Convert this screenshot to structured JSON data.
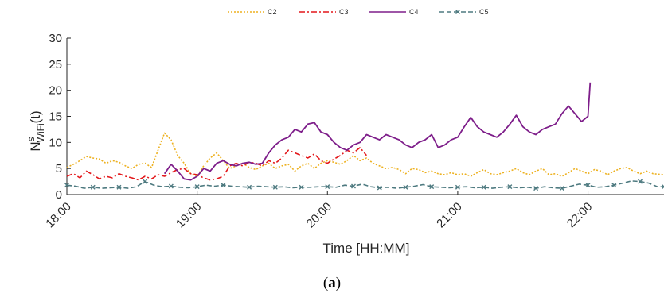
{
  "chart_data": {
    "type": "line",
    "xlabel": "Time [HH:MM]",
    "ylabel_base": "N",
    "ylabel_sup": "s",
    "ylabel_sub": "WiFi",
    "ylabel_arg": "(t)",
    "caption_open": "(",
    "caption_letter": "a",
    "caption_close": ")",
    "xlim": [
      1080,
      1355
    ],
    "ylim": [
      0,
      30
    ],
    "x_ticks": [
      {
        "value": 1080,
        "label": "18:00"
      },
      {
        "value": 1140,
        "label": "19:00"
      },
      {
        "value": 1200,
        "label": "20:00"
      },
      {
        "value": 1260,
        "label": "21:00"
      },
      {
        "value": 1320,
        "label": "22:00"
      }
    ],
    "y_ticks": [
      0,
      5,
      10,
      15,
      20,
      25,
      30
    ],
    "legend_position": "top-center",
    "series": [
      {
        "name": "C2",
        "color": "#EDB120",
        "dash": "2,2",
        "marker": "none",
        "x": [
          1080,
          1083,
          1086,
          1089,
          1092,
          1095,
          1098,
          1101,
          1104,
          1107,
          1110,
          1113,
          1116,
          1119,
          1122,
          1125,
          1128,
          1131,
          1134,
          1137,
          1140,
          1143,
          1146,
          1149,
          1152,
          1155,
          1158,
          1161,
          1164,
          1167,
          1170,
          1173,
          1176,
          1179,
          1182,
          1185,
          1188,
          1191,
          1194,
          1197,
          1200,
          1203,
          1206,
          1209,
          1212,
          1215,
          1218,
          1221,
          1224,
          1227,
          1230,
          1233,
          1236,
          1239,
          1242,
          1245,
          1248,
          1251,
          1254,
          1257,
          1260,
          1263,
          1266,
          1269,
          1272,
          1275,
          1278,
          1281,
          1284,
          1287,
          1290,
          1293,
          1296,
          1299,
          1302,
          1305,
          1308,
          1311,
          1314,
          1317,
          1320,
          1323,
          1326,
          1329,
          1332,
          1335,
          1338,
          1341,
          1344,
          1347,
          1350,
          1355
        ],
        "values": [
          5.2,
          5.8,
          6.5,
          7.3,
          7.0,
          6.8,
          6.0,
          6.5,
          6.2,
          5.5,
          5.0,
          5.8,
          6.0,
          5.2,
          8.5,
          11.8,
          10.5,
          7.5,
          6.0,
          4.0,
          3.5,
          5.5,
          7.0,
          8.0,
          6.5,
          5.0,
          5.5,
          6.0,
          5.2,
          4.8,
          5.5,
          6.0,
          5.0,
          5.5,
          5.8,
          4.5,
          5.5,
          6.0,
          5.0,
          6.0,
          6.5,
          6.2,
          5.8,
          6.5,
          7.5,
          6.5,
          7.0,
          6.0,
          5.5,
          5.0,
          5.2,
          4.8,
          4.0,
          5.0,
          4.8,
          4.2,
          4.5,
          4.0,
          3.8,
          4.2,
          3.8,
          4.0,
          3.5,
          4.2,
          4.8,
          4.0,
          3.8,
          4.2,
          4.5,
          5.0,
          4.2,
          3.8,
          4.5,
          5.0,
          3.8,
          4.0,
          3.5,
          4.2,
          5.0,
          4.5,
          4.0,
          4.8,
          4.5,
          3.8,
          4.5,
          5.0,
          5.2,
          4.5,
          4.0,
          4.5,
          4.0,
          3.8
        ]
      },
      {
        "name": "C3",
        "color": "#E3171A",
        "dash": "7,3,2,3",
        "marker": "none",
        "x": [
          1080,
          1083,
          1086,
          1089,
          1092,
          1095,
          1098,
          1101,
          1104,
          1107,
          1110,
          1113,
          1116,
          1119,
          1122,
          1125,
          1128,
          1131,
          1134,
          1137,
          1140,
          1143,
          1146,
          1149,
          1152,
          1155,
          1158,
          1161,
          1164,
          1167,
          1170,
          1173,
          1176,
          1179,
          1182,
          1185,
          1188,
          1191,
          1194,
          1197,
          1200,
          1203,
          1206,
          1209,
          1212,
          1215,
          1218
        ],
        "values": [
          3.5,
          4.0,
          3.2,
          4.5,
          3.8,
          3.0,
          3.5,
          3.2,
          4.0,
          3.5,
          3.2,
          2.8,
          3.5,
          3.0,
          3.8,
          3.5,
          4.2,
          4.8,
          5.0,
          4.0,
          3.8,
          3.2,
          2.8,
          3.0,
          3.5,
          5.5,
          6.0,
          5.5,
          6.2,
          6.0,
          5.5,
          6.5,
          6.0,
          7.0,
          8.5,
          8.0,
          7.5,
          7.0,
          7.8,
          6.5,
          6.0,
          6.8,
          7.5,
          8.5,
          8.0,
          9.0,
          7.5
        ]
      },
      {
        "name": "C4",
        "color": "#7E1E8A",
        "dash": "",
        "marker": "none",
        "x": [
          1125,
          1128,
          1131,
          1134,
          1137,
          1140,
          1143,
          1146,
          1149,
          1152,
          1155,
          1158,
          1161,
          1164,
          1167,
          1170,
          1173,
          1176,
          1179,
          1182,
          1185,
          1188,
          1191,
          1194,
          1197,
          1200,
          1203,
          1206,
          1209,
          1212,
          1215,
          1218,
          1221,
          1224,
          1227,
          1230,
          1233,
          1236,
          1239,
          1242,
          1245,
          1248,
          1251,
          1254,
          1257,
          1260,
          1263,
          1266,
          1269,
          1272,
          1275,
          1278,
          1281,
          1284,
          1287,
          1290,
          1293,
          1296,
          1299,
          1302,
          1305,
          1308,
          1311,
          1314,
          1317,
          1320,
          1321
        ],
        "values": [
          4.0,
          5.8,
          4.5,
          3.0,
          2.8,
          3.5,
          5.0,
          4.5,
          6.0,
          6.5,
          5.8,
          5.5,
          6.0,
          6.2,
          5.8,
          6.0,
          8.0,
          9.5,
          10.5,
          11.0,
          12.5,
          12.0,
          13.5,
          13.8,
          12.0,
          11.5,
          10.0,
          9.0,
          8.5,
          9.5,
          10.0,
          11.5,
          11.0,
          10.5,
          11.5,
          11.0,
          10.5,
          9.5,
          9.0,
          10.0,
          10.5,
          11.5,
          9.0,
          9.5,
          10.5,
          11.0,
          13.0,
          14.8,
          13.0,
          12.0,
          11.5,
          11.0,
          12.0,
          13.5,
          15.2,
          13.0,
          12.0,
          11.5,
          12.5,
          13.0,
          13.5,
          15.5,
          17.0,
          15.5,
          14.0,
          15.0,
          21.5
        ]
      },
      {
        "name": "C5",
        "color": "#4E7A80",
        "dash": "6,3",
        "marker": "x",
        "x": [
          1080,
          1084,
          1088,
          1092,
          1096,
          1100,
          1104,
          1108,
          1112,
          1116,
          1120,
          1124,
          1128,
          1132,
          1136,
          1140,
          1144,
          1148,
          1152,
          1156,
          1160,
          1164,
          1168,
          1172,
          1176,
          1180,
          1184,
          1188,
          1192,
          1196,
          1200,
          1204,
          1208,
          1212,
          1216,
          1220,
          1224,
          1228,
          1232,
          1236,
          1240,
          1244,
          1248,
          1252,
          1256,
          1260,
          1264,
          1268,
          1272,
          1276,
          1280,
          1284,
          1288,
          1292,
          1296,
          1300,
          1304,
          1308,
          1312,
          1316,
          1320,
          1324,
          1328,
          1332,
          1336,
          1340,
          1344,
          1348,
          1352,
          1355
        ],
        "values": [
          1.8,
          1.6,
          1.2,
          1.4,
          1.2,
          1.3,
          1.4,
          1.2,
          1.5,
          2.5,
          1.8,
          1.5,
          1.6,
          1.4,
          1.3,
          1.5,
          1.8,
          1.6,
          1.8,
          1.6,
          1.5,
          1.4,
          1.6,
          1.5,
          1.4,
          1.5,
          1.3,
          1.4,
          1.4,
          1.5,
          1.5,
          1.4,
          1.8,
          1.6,
          2.0,
          1.5,
          1.3,
          1.4,
          1.2,
          1.4,
          1.6,
          1.9,
          1.5,
          1.4,
          1.3,
          1.4,
          1.5,
          1.3,
          1.4,
          1.2,
          1.4,
          1.5,
          1.3,
          1.4,
          1.2,
          1.5,
          1.3,
          1.2,
          1.6,
          2.0,
          1.8,
          1.4,
          1.5,
          1.8,
          2.2,
          2.6,
          2.5,
          2.2,
          1.5,
          1.5
        ]
      }
    ]
  }
}
